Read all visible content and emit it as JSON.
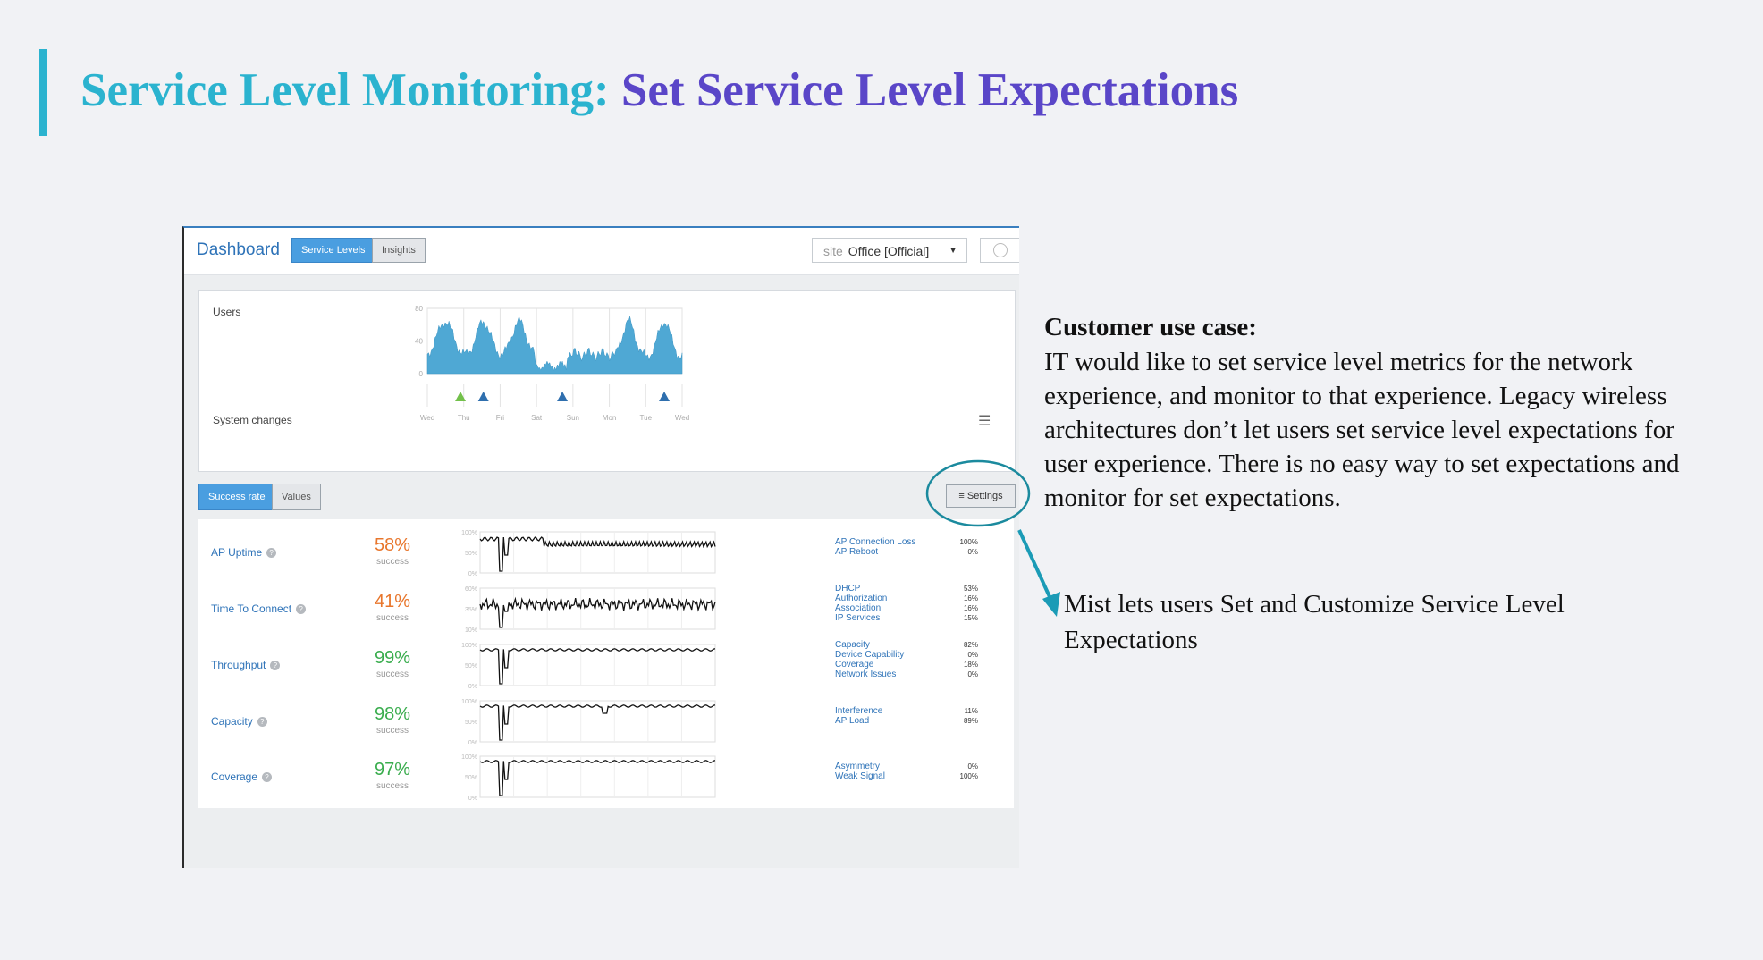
{
  "slide": {
    "title_part1": "Service Level Monitoring:",
    "title_part2": "Set Service Level Expectations",
    "accent_color": "#2bb3cf",
    "title_color_2": "#5a46c8"
  },
  "dashboard": {
    "title": "Dashboard",
    "tabs": [
      {
        "label": "Service Levels",
        "active": true
      },
      {
        "label": "Insights",
        "active": false
      }
    ],
    "site_label": "site",
    "site_value": "Office [Official]",
    "time_icon": "clock-icon",
    "users_panel": {
      "users_label": "Users",
      "system_changes_label": "System changes",
      "y_ticks": [
        "80",
        "40",
        "0"
      ],
      "days": [
        "Wed",
        "Thu",
        "Fri",
        "Sat",
        "Sun",
        "Mon",
        "Tue",
        "Wed"
      ],
      "filter_icon": "sliders-icon"
    },
    "view_tabs": [
      {
        "label": "Success rate",
        "active": true
      },
      {
        "label": "Values",
        "active": false
      }
    ],
    "settings_label": "Settings",
    "metrics": [
      {
        "name": "AP Uptime",
        "percent": "58%",
        "sub": "success",
        "color": "#e8762c",
        "y_ticks": [
          "100%",
          "50%",
          "0%"
        ],
        "classifiers": [
          {
            "name": "AP Connection Loss",
            "value": "100%"
          },
          {
            "name": "AP Reboot",
            "value": "0%"
          }
        ]
      },
      {
        "name": "Time To Connect",
        "percent": "41%",
        "sub": "success",
        "color": "#e8762c",
        "y_ticks": [
          "60%",
          "35%",
          "10%"
        ],
        "classifiers": [
          {
            "name": "DHCP",
            "value": "53%"
          },
          {
            "name": "Authorization",
            "value": "16%"
          },
          {
            "name": "Association",
            "value": "16%"
          },
          {
            "name": "IP Services",
            "value": "15%"
          }
        ]
      },
      {
        "name": "Throughput",
        "percent": "99%",
        "sub": "success",
        "color": "#3aad4e",
        "y_ticks": [
          "100%",
          "50%",
          "0%"
        ],
        "classifiers": [
          {
            "name": "Capacity",
            "value": "82%"
          },
          {
            "name": "Device Capability",
            "value": "0%"
          },
          {
            "name": "Coverage",
            "value": "18%"
          },
          {
            "name": "Network Issues",
            "value": "0%"
          }
        ]
      },
      {
        "name": "Capacity",
        "percent": "98%",
        "sub": "success",
        "color": "#3aad4e",
        "y_ticks": [
          "100%",
          "50%",
          "0%"
        ],
        "classifiers": [
          {
            "name": "Interference",
            "value": "11%"
          },
          {
            "name": "AP Load",
            "value": "89%"
          }
        ]
      },
      {
        "name": "Coverage",
        "percent": "97%",
        "sub": "success",
        "color": "#3aad4e",
        "y_ticks": [
          "100%",
          "50%",
          "0%"
        ],
        "classifiers": [
          {
            "name": "Asymmetry",
            "value": "0%"
          },
          {
            "name": "Weak Signal",
            "value": "100%"
          }
        ]
      }
    ]
  },
  "use_case": {
    "heading": "Customer use case:",
    "body": "IT would like to set service level metrics for the network experience, and monitor to that experience. Legacy wireless architectures don’t let users set service level expectations for user experience. There is no easy way to set expectations and monitor for set expectations."
  },
  "mist_note": "Mist lets users Set and Customize Service Level Expectations"
}
